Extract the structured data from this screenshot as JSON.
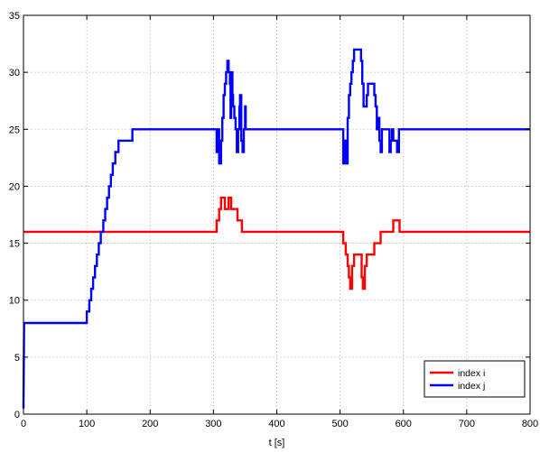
{
  "chart_data": {
    "type": "line",
    "title": "",
    "xlabel": "t [s]",
    "ylabel": "",
    "xlim": [
      0,
      800
    ],
    "ylim": [
      0,
      35
    ],
    "xticks": [
      0,
      100,
      200,
      300,
      400,
      500,
      600,
      700,
      800
    ],
    "yticks": [
      0,
      5,
      10,
      15,
      20,
      25,
      30,
      35
    ],
    "grid": true,
    "legend_position": "bottom-right",
    "series": [
      {
        "name": "index i",
        "color": "#ff0000",
        "points": [
          [
            0,
            16
          ],
          [
            305,
            16
          ],
          [
            305,
            17
          ],
          [
            309,
            17
          ],
          [
            309,
            18
          ],
          [
            312,
            18
          ],
          [
            312,
            19
          ],
          [
            318,
            19
          ],
          [
            318,
            18
          ],
          [
            324,
            18
          ],
          [
            324,
            19
          ],
          [
            328,
            19
          ],
          [
            328,
            18
          ],
          [
            338,
            18
          ],
          [
            338,
            17
          ],
          [
            345,
            17
          ],
          [
            345,
            16
          ],
          [
            505,
            16
          ],
          [
            505,
            15
          ],
          [
            509,
            15
          ],
          [
            509,
            14
          ],
          [
            512,
            14
          ],
          [
            512,
            13
          ],
          [
            514,
            13
          ],
          [
            514,
            12
          ],
          [
            516,
            12
          ],
          [
            516,
            11
          ],
          [
            519,
            11
          ],
          [
            519,
            13
          ],
          [
            522,
            13
          ],
          [
            522,
            14
          ],
          [
            534,
            14
          ],
          [
            534,
            12
          ],
          [
            536,
            12
          ],
          [
            536,
            11
          ],
          [
            539,
            11
          ],
          [
            539,
            13
          ],
          [
            542,
            13
          ],
          [
            542,
            14
          ],
          [
            554,
            14
          ],
          [
            554,
            15
          ],
          [
            564,
            15
          ],
          [
            564,
            16
          ],
          [
            584,
            16
          ],
          [
            584,
            17
          ],
          [
            594,
            17
          ],
          [
            594,
            16
          ],
          [
            800,
            16
          ]
        ]
      },
      {
        "name": "index j",
        "color": "#0000ff",
        "points": [
          [
            0,
            0.5
          ],
          [
            1,
            8
          ],
          [
            100,
            8
          ],
          [
            100,
            9
          ],
          [
            104,
            9
          ],
          [
            104,
            10
          ],
          [
            107,
            10
          ],
          [
            107,
            11
          ],
          [
            110,
            11
          ],
          [
            110,
            12
          ],
          [
            113,
            12
          ],
          [
            113,
            13
          ],
          [
            116,
            13
          ],
          [
            116,
            14
          ],
          [
            119,
            14
          ],
          [
            119,
            15
          ],
          [
            122,
            15
          ],
          [
            122,
            16
          ],
          [
            126,
            16
          ],
          [
            126,
            17
          ],
          [
            129,
            17
          ],
          [
            129,
            18
          ],
          [
            132,
            18
          ],
          [
            132,
            19
          ],
          [
            135,
            19
          ],
          [
            135,
            20
          ],
          [
            138,
            20
          ],
          [
            138,
            21
          ],
          [
            141,
            21
          ],
          [
            141,
            22
          ],
          [
            145,
            22
          ],
          [
            145,
            23
          ],
          [
            150,
            23
          ],
          [
            150,
            24
          ],
          [
            172,
            24
          ],
          [
            172,
            25
          ],
          [
            305,
            25
          ],
          [
            305,
            23
          ],
          [
            307,
            23
          ],
          [
            307,
            25
          ],
          [
            309,
            25
          ],
          [
            309,
            22
          ],
          [
            312,
            22
          ],
          [
            312,
            24
          ],
          [
            314,
            24
          ],
          [
            314,
            26
          ],
          [
            316,
            26
          ],
          [
            316,
            28
          ],
          [
            318,
            28
          ],
          [
            318,
            29
          ],
          [
            320,
            29
          ],
          [
            320,
            30
          ],
          [
            322,
            30
          ],
          [
            322,
            31
          ],
          [
            324,
            31
          ],
          [
            324,
            30
          ],
          [
            326,
            30
          ],
          [
            326,
            29
          ],
          [
            327,
            29
          ],
          [
            327,
            26
          ],
          [
            328,
            26
          ],
          [
            328,
            30
          ],
          [
            330,
            30
          ],
          [
            330,
            28
          ],
          [
            331,
            28
          ],
          [
            331,
            27
          ],
          [
            333,
            27
          ],
          [
            333,
            26
          ],
          [
            335,
            26
          ],
          [
            335,
            25
          ],
          [
            337,
            25
          ],
          [
            337,
            23
          ],
          [
            339,
            23
          ],
          [
            339,
            25
          ],
          [
            341,
            25
          ],
          [
            341,
            27
          ],
          [
            342,
            27
          ],
          [
            342,
            28
          ],
          [
            344,
            28
          ],
          [
            344,
            24
          ],
          [
            346,
            24
          ],
          [
            346,
            23
          ],
          [
            348,
            23
          ],
          [
            348,
            25
          ],
          [
            350,
            25
          ],
          [
            350,
            27
          ],
          [
            351,
            27
          ],
          [
            351,
            25
          ],
          [
            505,
            25
          ],
          [
            505,
            22
          ],
          [
            508,
            22
          ],
          [
            508,
            24
          ],
          [
            510,
            24
          ],
          [
            510,
            22
          ],
          [
            512,
            22
          ],
          [
            512,
            26
          ],
          [
            514,
            26
          ],
          [
            514,
            28
          ],
          [
            516,
            28
          ],
          [
            516,
            29
          ],
          [
            518,
            29
          ],
          [
            518,
            30
          ],
          [
            520,
            30
          ],
          [
            520,
            31
          ],
          [
            522,
            31
          ],
          [
            522,
            32
          ],
          [
            533,
            32
          ],
          [
            533,
            31
          ],
          [
            535,
            31
          ],
          [
            535,
            29
          ],
          [
            537,
            29
          ],
          [
            537,
            27
          ],
          [
            542,
            27
          ],
          [
            542,
            28
          ],
          [
            544,
            28
          ],
          [
            544,
            29
          ],
          [
            554,
            29
          ],
          [
            554,
            28
          ],
          [
            556,
            28
          ],
          [
            556,
            27
          ],
          [
            558,
            27
          ],
          [
            558,
            25
          ],
          [
            560,
            25
          ],
          [
            560,
            26
          ],
          [
            562,
            26
          ],
          [
            562,
            24
          ],
          [
            564,
            24
          ],
          [
            564,
            23
          ],
          [
            566,
            23
          ],
          [
            566,
            25
          ],
          [
            578,
            25
          ],
          [
            578,
            23
          ],
          [
            580,
            23
          ],
          [
            580,
            24
          ],
          [
            582,
            24
          ],
          [
            582,
            25
          ],
          [
            584,
            25
          ],
          [
            584,
            24
          ],
          [
            590,
            24
          ],
          [
            590,
            23
          ],
          [
            593,
            23
          ],
          [
            593,
            25
          ],
          [
            800,
            25
          ]
        ]
      }
    ]
  }
}
